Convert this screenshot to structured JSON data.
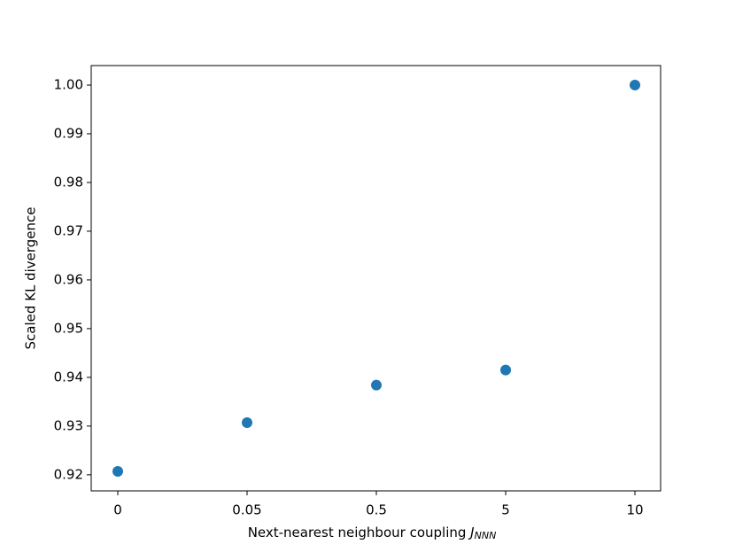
{
  "chart_data": {
    "type": "scatter",
    "x_label": "Next-nearest neighbour coupling ",
    "x_label_symbol": "J",
    "x_label_subscript": "NNN",
    "y_label": "Scaled KL divergence",
    "categories": [
      "0",
      "0.05",
      "0.5",
      "5",
      "10"
    ],
    "values": [
      0.9207,
      0.9307,
      0.9384,
      0.9415,
      1.0
    ],
    "color": "#1f77b4",
    "ylim": [
      0.9167,
      1.004
    ],
    "yticks": [
      0.92,
      0.93,
      0.94,
      0.95,
      0.96,
      0.97,
      0.98,
      0.99,
      {
        "value": 1.0,
        "label": "1.00"
      }
    ],
    "grid": false
  }
}
